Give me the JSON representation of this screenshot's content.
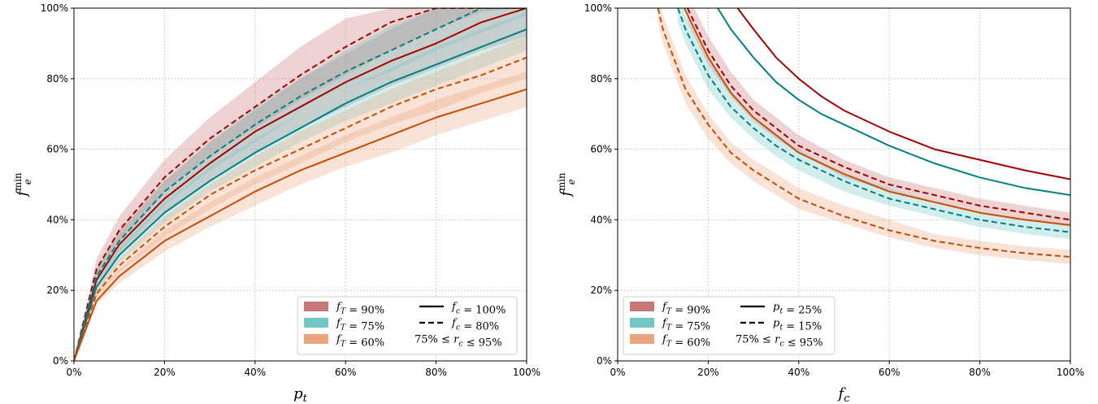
{
  "colors": {
    "f_T_90": "#a30000",
    "f_T_75": "#007f84",
    "f_T_60": "#c84d00",
    "band_90": "#c97676",
    "band_75": "#6fc6c4",
    "band_60": "#eba57e"
  },
  "chart_data": [
    {
      "type": "line",
      "xlabel": "p_t",
      "ylabel": "f_e^min",
      "xlim": [
        0,
        100
      ],
      "ylim": [
        0,
        100
      ],
      "x_ticks": [
        "0%",
        "20%",
        "40%",
        "60%",
        "80%",
        "100%"
      ],
      "y_ticks": [
        "0%",
        "20%",
        "40%",
        "60%",
        "80%",
        "100%"
      ],
      "grid": true,
      "legend_position": "bottom-right",
      "legend": [
        {
          "label": "f_T = 90%",
          "kind": "band",
          "color_key": "band_90"
        },
        {
          "label": "f_c = 100%",
          "kind": "solid"
        },
        {
          "label": "f_T = 75%",
          "kind": "band",
          "color_key": "band_75"
        },
        {
          "label": "f_c = 80%",
          "kind": "dashed"
        },
        {
          "label": "f_T = 60%",
          "kind": "band",
          "color_key": "band_60"
        },
        {
          "label": "75% ≤ r_c ≤ 95%",
          "kind": "text"
        }
      ],
      "series": [
        {
          "f_T": "90%",
          "f_c": "100%",
          "style": "solid",
          "color_key": "f_T_90",
          "band_key": "band_90",
          "x": [
            0,
            5,
            10,
            20,
            30,
            40,
            50,
            60,
            70,
            80,
            90,
            100
          ],
          "y": [
            0,
            23,
            33,
            46,
            56,
            65,
            72,
            79,
            85,
            90,
            96,
            100
          ],
          "band_low": [
            0,
            21,
            30,
            42,
            51,
            59,
            66,
            72,
            78,
            83,
            88,
            92
          ],
          "band_high": [
            0,
            26,
            37,
            51,
            62,
            71,
            80,
            87,
            94,
            100,
            100,
            100
          ]
        },
        {
          "f_T": "90%",
          "f_c": "80%",
          "style": "dashed",
          "color_key": "f_T_90",
          "band_key": "band_90",
          "x": [
            0,
            5,
            10,
            20,
            30,
            40,
            50,
            60,
            70,
            80,
            90,
            100
          ],
          "y": [
            0,
            26,
            37,
            52,
            63,
            72,
            81,
            89,
            96,
            100,
            100,
            100
          ],
          "band_low": [
            0,
            24,
            34,
            48,
            58,
            66,
            74,
            81,
            88,
            94,
            99,
            100
          ],
          "band_high": [
            0,
            29,
            41,
            57,
            69,
            79,
            89,
            97,
            100,
            100,
            100,
            100
          ]
        },
        {
          "f_T": "75%",
          "f_c": "100%",
          "style": "solid",
          "color_key": "f_T_75",
          "band_key": "band_75",
          "x": [
            0,
            5,
            10,
            20,
            30,
            40,
            50,
            60,
            70,
            80,
            90,
            100
          ],
          "y": [
            0,
            21,
            30,
            42,
            51,
            59,
            66,
            73,
            79,
            84,
            89,
            94
          ],
          "band_low": [
            0,
            19,
            28,
            39,
            48,
            55,
            62,
            68,
            73,
            78,
            83,
            88
          ],
          "band_high": [
            0,
            23,
            32,
            45,
            55,
            63,
            70,
            77,
            83,
            89,
            94,
            99
          ]
        },
        {
          "f_T": "75%",
          "f_c": "80%",
          "style": "dashed",
          "color_key": "f_T_75",
          "band_key": "band_75",
          "x": [
            0,
            5,
            10,
            20,
            30,
            40,
            50,
            60,
            70,
            80,
            90,
            100
          ],
          "y": [
            0,
            24,
            34,
            48,
            58,
            67,
            75,
            82,
            88,
            94,
            100,
            100
          ],
          "band_low": [
            0,
            22,
            31,
            44,
            54,
            62,
            70,
            77,
            82,
            88,
            93,
            98
          ],
          "band_high": [
            0,
            26,
            36,
            51,
            62,
            72,
            80,
            88,
            95,
            100,
            100,
            100
          ]
        },
        {
          "f_T": "60%",
          "f_c": "100%",
          "style": "solid",
          "color_key": "f_T_60",
          "band_key": "band_60",
          "x": [
            0,
            5,
            10,
            20,
            30,
            40,
            50,
            60,
            70,
            80,
            90,
            100
          ],
          "y": [
            0,
            17,
            24,
            34,
            41,
            48,
            54,
            59,
            64,
            69,
            73,
            77
          ],
          "band_low": [
            0,
            16,
            22,
            31,
            38,
            44,
            50,
            55,
            59,
            64,
            68,
            72
          ],
          "band_high": [
            0,
            19,
            26,
            37,
            45,
            52,
            58,
            64,
            69,
            74,
            78,
            82
          ]
        },
        {
          "f_T": "60%",
          "f_c": "80%",
          "style": "dashed",
          "color_key": "f_T_60",
          "band_key": "band_60",
          "x": [
            0,
            5,
            10,
            20,
            30,
            40,
            50,
            60,
            70,
            80,
            90,
            100
          ],
          "y": [
            0,
            19,
            27,
            38,
            47,
            54,
            60,
            66,
            72,
            77,
            81,
            86
          ],
          "band_low": [
            0,
            18,
            25,
            35,
            43,
            50,
            56,
            62,
            67,
            71,
            76,
            80
          ],
          "band_high": [
            0,
            21,
            29,
            41,
            50,
            58,
            65,
            71,
            77,
            82,
            87,
            92
          ]
        }
      ]
    },
    {
      "type": "line",
      "xlabel": "f_c",
      "ylabel": "f_e^min",
      "xlim": [
        0,
        100
      ],
      "ylim": [
        0,
        100
      ],
      "x_ticks": [
        "0%",
        "20%",
        "40%",
        "60%",
        "80%",
        "100%"
      ],
      "y_ticks": [
        "0%",
        "20%",
        "40%",
        "60%",
        "80%",
        "100%"
      ],
      "grid": true,
      "legend_position": "bottom-left",
      "legend": [
        {
          "label": "f_T = 90%",
          "kind": "band",
          "color_key": "band_90"
        },
        {
          "label": "p_t = 25%",
          "kind": "solid"
        },
        {
          "label": "f_T = 75%",
          "kind": "band",
          "color_key": "band_75"
        },
        {
          "label": "p_t = 15%",
          "kind": "dashed"
        },
        {
          "label": "f_T = 60%",
          "kind": "band",
          "color_key": "band_60"
        },
        {
          "label": "75% ≤ r_c ≤ 95%",
          "kind": "text"
        }
      ],
      "series": [
        {
          "f_T": "90%",
          "p_t": "25%",
          "style": "solid",
          "color_key": "f_T_90",
          "band_key": null,
          "x": [
            26.5,
            30,
            35,
            40,
            45,
            50,
            55,
            60,
            70,
            80,
            90,
            100
          ],
          "y": [
            100,
            94,
            86,
            80,
            75,
            71,
            68,
            65,
            60,
            57,
            54,
            51.5
          ]
        },
        {
          "f_T": "75%",
          "p_t": "25%",
          "style": "solid",
          "color_key": "f_T_75",
          "band_key": null,
          "x": [
            22.1,
            25,
            30,
            35,
            40,
            45,
            50,
            60,
            70,
            80,
            90,
            100
          ],
          "y": [
            100,
            94,
            86,
            79,
            74,
            70,
            67,
            61,
            56,
            52,
            49,
            47
          ]
        },
        {
          "f_T": "90%",
          "p_t": "15%",
          "style": "dashed",
          "color_key": "f_T_90",
          "band_key": "band_90",
          "x": [
            15.4,
            20,
            25,
            30,
            35,
            40,
            50,
            60,
            70,
            80,
            90,
            100
          ],
          "y": [
            100,
            88,
            78,
            71,
            66,
            61,
            55,
            50,
            47,
            44,
            42,
            40
          ],
          "band_low": [
            96,
            84,
            75,
            68,
            63,
            59,
            52,
            48,
            45,
            42,
            40,
            38
          ],
          "band_high": [
            104,
            92,
            82,
            74,
            69,
            64,
            57,
            52,
            49,
            46,
            44,
            42
          ]
        },
        {
          "f_T": "60%",
          "p_t": "25%",
          "style": "solid",
          "color_key": "f_T_60",
          "band_key": null,
          "x": [
            14.7,
            20,
            25,
            30,
            35,
            40,
            50,
            60,
            70,
            80,
            90,
            100
          ],
          "y": [
            100,
            86,
            76,
            69,
            64,
            59,
            53,
            48,
            45,
            42,
            40,
            38.5
          ]
        },
        {
          "f_T": "75%",
          "p_t": "15%",
          "style": "dashed",
          "color_key": "f_T_75",
          "band_key": "band_75",
          "x": [
            13.3,
            15,
            20,
            25,
            30,
            35,
            40,
            50,
            60,
            70,
            80,
            90,
            100
          ],
          "y": [
            100,
            94,
            81,
            72,
            66,
            61,
            57,
            51,
            46,
            43,
            40,
            38,
            36.5
          ],
          "band_low": [
            96,
            90,
            77,
            69,
            63,
            58,
            54,
            48,
            44,
            41,
            38,
            36,
            34.5
          ],
          "band_high": [
            104,
            98,
            85,
            76,
            69,
            64,
            60,
            53,
            49,
            45,
            42,
            40,
            38.5
          ]
        },
        {
          "f_T": "60%",
          "p_t": "15%",
          "style": "dashed",
          "color_key": "f_T_60",
          "band_key": "band_60",
          "x": [
            8.9,
            10,
            15,
            20,
            25,
            30,
            35,
            40,
            50,
            60,
            70,
            80,
            90,
            100
          ],
          "y": [
            100,
            94,
            77,
            67,
            59,
            54,
            50,
            46,
            41,
            37,
            34,
            32,
            30.5,
            29.5
          ],
          "band_low": [
            96,
            90,
            73,
            63,
            56,
            51,
            47,
            43,
            39,
            35,
            32,
            30,
            28.5,
            27.5
          ],
          "band_high": [
            104,
            98,
            81,
            70,
            62,
            57,
            53,
            49,
            44,
            40,
            36,
            34,
            32.5,
            31.5
          ]
        }
      ]
    }
  ]
}
